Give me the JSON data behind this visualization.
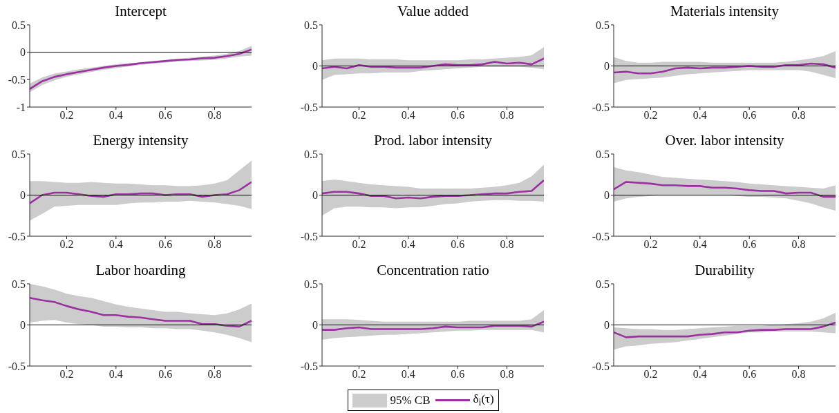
{
  "chart_data": [
    {
      "type": "line",
      "title": "Intercept",
      "x": [
        0.05,
        0.1,
        0.15,
        0.2,
        0.25,
        0.3,
        0.35,
        0.4,
        0.45,
        0.5,
        0.55,
        0.6,
        0.65,
        0.7,
        0.75,
        0.8,
        0.85,
        0.9,
        0.95
      ],
      "xlim": [
        0.05,
        0.95
      ],
      "xticks": [
        0.2,
        0.4,
        0.6,
        0.8
      ],
      "ylim": [
        -1,
        0.5
      ],
      "yticks": [
        -1,
        -0.5,
        0,
        0.5
      ],
      "ref_lines": [
        {
          "axis": "y",
          "value": 0,
          "color": "#000000"
        }
      ],
      "series": [
        {
          "color": "#9b30a0",
          "values": [
            -0.67,
            -0.53,
            -0.45,
            -0.4,
            -0.36,
            -0.32,
            -0.28,
            -0.25,
            -0.23,
            -0.2,
            -0.18,
            -0.16,
            -0.14,
            -0.13,
            -0.11,
            -0.1,
            -0.07,
            -0.03,
            0.05
          ],
          "lower": [
            -0.73,
            -0.6,
            -0.51,
            -0.45,
            -0.4,
            -0.36,
            -0.32,
            -0.29,
            -0.26,
            -0.23,
            -0.21,
            -0.19,
            -0.17,
            -0.16,
            -0.15,
            -0.14,
            -0.11,
            -0.08,
            -0.06
          ],
          "upper": [
            -0.57,
            -0.46,
            -0.39,
            -0.35,
            -0.31,
            -0.28,
            -0.25,
            -0.22,
            -0.2,
            -0.18,
            -0.16,
            -0.14,
            -0.12,
            -0.1,
            -0.08,
            -0.06,
            -0.03,
            0.02,
            0.12
          ]
        }
      ]
    },
    {
      "type": "line",
      "title": "Value added",
      "x": [
        0.05,
        0.1,
        0.15,
        0.2,
        0.25,
        0.3,
        0.35,
        0.4,
        0.45,
        0.5,
        0.55,
        0.6,
        0.65,
        0.7,
        0.75,
        0.8,
        0.85,
        0.9,
        0.95
      ],
      "xlim": [
        0.05,
        0.95
      ],
      "xticks": [
        0.2,
        0.4,
        0.6,
        0.8
      ],
      "ylim": [
        -0.5,
        0.5
      ],
      "yticks": [
        -0.5,
        0,
        0.5
      ],
      "ref_lines": [
        {
          "axis": "y",
          "value": 0,
          "color": "#000000"
        }
      ],
      "series": [
        {
          "color": "#9b30a0",
          "values": [
            -0.03,
            -0.01,
            -0.03,
            0.01,
            -0.01,
            -0.01,
            -0.02,
            -0.02,
            -0.02,
            0.0,
            0.02,
            0.01,
            0.01,
            0.02,
            0.05,
            0.03,
            0.04,
            0.02,
            0.09
          ],
          "lower": [
            -0.17,
            -0.11,
            -0.1,
            -0.09,
            -0.09,
            -0.08,
            -0.08,
            -0.08,
            -0.06,
            -0.05,
            -0.04,
            -0.03,
            -0.02,
            -0.01,
            -0.01,
            -0.01,
            -0.01,
            -0.02,
            -0.04
          ],
          "upper": [
            0.07,
            0.09,
            0.09,
            0.09,
            0.08,
            0.08,
            0.08,
            0.07,
            0.07,
            0.07,
            0.07,
            0.07,
            0.08,
            0.08,
            0.09,
            0.1,
            0.11,
            0.13,
            0.23
          ]
        }
      ]
    },
    {
      "type": "line",
      "title": "Materials intensity",
      "x": [
        0.05,
        0.1,
        0.15,
        0.2,
        0.25,
        0.3,
        0.35,
        0.4,
        0.45,
        0.5,
        0.55,
        0.6,
        0.65,
        0.7,
        0.75,
        0.8,
        0.85,
        0.9,
        0.95
      ],
      "xlim": [
        0.05,
        0.95
      ],
      "xticks": [
        0.2,
        0.4,
        0.6,
        0.8
      ],
      "ylim": [
        -0.5,
        0.5
      ],
      "yticks": [
        -0.5,
        0,
        0.5
      ],
      "ref_lines": [
        {
          "axis": "y",
          "value": 0,
          "color": "#000000"
        }
      ],
      "series": [
        {
          "color": "#9b30a0",
          "values": [
            -0.08,
            -0.07,
            -0.09,
            -0.09,
            -0.07,
            -0.03,
            -0.02,
            -0.03,
            -0.02,
            -0.02,
            -0.01,
            0.0,
            -0.01,
            -0.01,
            0.01,
            0.01,
            0.03,
            0.02,
            -0.02
          ],
          "lower": [
            -0.21,
            -0.17,
            -0.16,
            -0.15,
            -0.14,
            -0.12,
            -0.1,
            -0.09,
            -0.08,
            -0.07,
            -0.06,
            -0.05,
            -0.05,
            -0.05,
            -0.05,
            -0.05,
            -0.07,
            -0.11,
            -0.15
          ],
          "upper": [
            0.11,
            0.06,
            0.04,
            0.04,
            0.05,
            0.05,
            0.05,
            0.05,
            0.04,
            0.04,
            0.04,
            0.04,
            0.04,
            0.04,
            0.05,
            0.07,
            0.09,
            0.12,
            0.18
          ]
        }
      ]
    },
    {
      "type": "line",
      "title": "Energy intensity",
      "x": [
        0.05,
        0.1,
        0.15,
        0.2,
        0.25,
        0.3,
        0.35,
        0.4,
        0.45,
        0.5,
        0.55,
        0.6,
        0.65,
        0.7,
        0.75,
        0.8,
        0.85,
        0.9,
        0.95
      ],
      "xlim": [
        0.05,
        0.95
      ],
      "xticks": [
        0.2,
        0.4,
        0.6,
        0.8
      ],
      "ylim": [
        -0.5,
        0.5
      ],
      "yticks": [
        -0.5,
        0,
        0.5
      ],
      "ref_lines": [
        {
          "axis": "y",
          "value": 0,
          "color": "#000000"
        }
      ],
      "series": [
        {
          "color": "#9b30a0",
          "values": [
            -0.1,
            0.0,
            0.03,
            0.03,
            0.01,
            -0.01,
            -0.02,
            0.01,
            0.01,
            0.02,
            0.02,
            0.0,
            0.01,
            0.01,
            -0.02,
            0.0,
            0.01,
            0.06,
            0.16
          ],
          "lower": [
            -0.31,
            -0.23,
            -0.14,
            -0.13,
            -0.12,
            -0.12,
            -0.12,
            -0.12,
            -0.1,
            -0.09,
            -0.09,
            -0.08,
            -0.08,
            -0.07,
            -0.08,
            -0.09,
            -0.11,
            -0.13,
            -0.17
          ],
          "upper": [
            0.17,
            0.17,
            0.16,
            0.15,
            0.15,
            0.16,
            0.15,
            0.14,
            0.14,
            0.13,
            0.12,
            0.12,
            0.11,
            0.11,
            0.12,
            0.14,
            0.18,
            0.3,
            0.42
          ]
        }
      ]
    },
    {
      "type": "line",
      "title": "Prod. labor intensity",
      "x": [
        0.05,
        0.1,
        0.15,
        0.2,
        0.25,
        0.3,
        0.35,
        0.4,
        0.45,
        0.5,
        0.55,
        0.6,
        0.65,
        0.7,
        0.75,
        0.8,
        0.85,
        0.9,
        0.95
      ],
      "xlim": [
        0.05,
        0.95
      ],
      "xticks": [
        0.2,
        0.4,
        0.6,
        0.8
      ],
      "ylim": [
        -0.5,
        0.5
      ],
      "yticks": [
        -0.5,
        0,
        0.5
      ],
      "ref_lines": [
        {
          "axis": "y",
          "value": 0,
          "color": "#000000"
        }
      ],
      "series": [
        {
          "color": "#9b30a0",
          "values": [
            0.02,
            0.04,
            0.04,
            0.02,
            -0.01,
            -0.01,
            -0.04,
            -0.03,
            -0.04,
            -0.02,
            -0.01,
            -0.01,
            0.0,
            0.01,
            0.02,
            0.02,
            0.04,
            0.05,
            0.18
          ],
          "lower": [
            -0.25,
            -0.16,
            -0.14,
            -0.14,
            -0.15,
            -0.15,
            -0.16,
            -0.15,
            -0.15,
            -0.13,
            -0.11,
            -0.1,
            -0.08,
            -0.07,
            -0.06,
            -0.06,
            -0.07,
            -0.07,
            -0.08
          ],
          "upper": [
            0.17,
            0.19,
            0.17,
            0.15,
            0.13,
            0.12,
            0.11,
            0.1,
            0.08,
            0.08,
            0.08,
            0.08,
            0.08,
            0.09,
            0.1,
            0.12,
            0.15,
            0.23,
            0.37
          ]
        }
      ]
    },
    {
      "type": "line",
      "title": "Over. labor intensity",
      "x": [
        0.05,
        0.1,
        0.15,
        0.2,
        0.25,
        0.3,
        0.35,
        0.4,
        0.45,
        0.5,
        0.55,
        0.6,
        0.65,
        0.7,
        0.75,
        0.8,
        0.85,
        0.9,
        0.95
      ],
      "xlim": [
        0.05,
        0.95
      ],
      "xticks": [
        0.2,
        0.4,
        0.6,
        0.8
      ],
      "ylim": [
        -0.5,
        0.5
      ],
      "yticks": [
        -0.5,
        0,
        0.5
      ],
      "ref_lines": [
        {
          "axis": "y",
          "value": 0,
          "color": "#000000"
        }
      ],
      "series": [
        {
          "color": "#9b30a0",
          "values": [
            0.07,
            0.16,
            0.15,
            0.14,
            0.12,
            0.12,
            0.11,
            0.11,
            0.09,
            0.09,
            0.08,
            0.06,
            0.05,
            0.05,
            0.02,
            0.03,
            0.03,
            -0.02,
            -0.02
          ],
          "lower": [
            -0.08,
            -0.04,
            -0.02,
            -0.01,
            0.0,
            0.0,
            0.0,
            0.0,
            0.0,
            0.0,
            -0.01,
            -0.02,
            -0.02,
            -0.03,
            -0.04,
            -0.07,
            -0.1,
            -0.15,
            -0.19
          ],
          "upper": [
            0.34,
            0.3,
            0.28,
            0.25,
            0.22,
            0.21,
            0.2,
            0.19,
            0.18,
            0.17,
            0.16,
            0.14,
            0.13,
            0.12,
            0.11,
            0.1,
            0.09,
            0.08,
            0.12
          ]
        }
      ]
    },
    {
      "type": "line",
      "title": "Labor hoarding",
      "x": [
        0.05,
        0.1,
        0.15,
        0.2,
        0.25,
        0.3,
        0.35,
        0.4,
        0.45,
        0.5,
        0.55,
        0.6,
        0.65,
        0.7,
        0.75,
        0.8,
        0.85,
        0.9,
        0.95
      ],
      "xlim": [
        0.05,
        0.95
      ],
      "xticks": [
        0.2,
        0.4,
        0.6,
        0.8
      ],
      "ylim": [
        -0.5,
        0.5
      ],
      "yticks": [
        -0.5,
        0,
        0.5
      ],
      "ref_lines": [
        {
          "axis": "y",
          "value": 0,
          "color": "#000000"
        }
      ],
      "series": [
        {
          "color": "#9b30a0",
          "values": [
            0.33,
            0.3,
            0.28,
            0.23,
            0.19,
            0.16,
            0.12,
            0.12,
            0.1,
            0.09,
            0.07,
            0.05,
            0.05,
            0.05,
            0.01,
            0.01,
            -0.01,
            -0.02,
            0.05
          ],
          "lower": [
            0.03,
            0.05,
            0.06,
            0.03,
            0.01,
            0.0,
            -0.02,
            -0.02,
            -0.03,
            -0.03,
            -0.04,
            -0.04,
            -0.05,
            -0.05,
            -0.07,
            -0.09,
            -0.12,
            -0.16,
            -0.21
          ],
          "upper": [
            0.5,
            0.47,
            0.43,
            0.38,
            0.35,
            0.33,
            0.29,
            0.25,
            0.22,
            0.2,
            0.18,
            0.16,
            0.16,
            0.14,
            0.13,
            0.12,
            0.14,
            0.19,
            0.26
          ]
        }
      ]
    },
    {
      "type": "line",
      "title": "Concentration ratio",
      "x": [
        0.05,
        0.1,
        0.15,
        0.2,
        0.25,
        0.3,
        0.35,
        0.4,
        0.45,
        0.5,
        0.55,
        0.6,
        0.65,
        0.7,
        0.75,
        0.8,
        0.85,
        0.9,
        0.95
      ],
      "xlim": [
        0.05,
        0.95
      ],
      "xticks": [
        0.2,
        0.4,
        0.6,
        0.8
      ],
      "ylim": [
        -0.5,
        0.5
      ],
      "yticks": [
        -0.5,
        0,
        0.5
      ],
      "ref_lines": [
        {
          "axis": "y",
          "value": 0,
          "color": "#000000"
        }
      ],
      "legend": "bottom",
      "annotations": [
        "95% CB"
      ],
      "series": [
        {
          "name": "δ$_{i}$(τ)",
          "color": "#9b30a0",
          "values": [
            -0.06,
            -0.06,
            -0.04,
            -0.03,
            -0.05,
            -0.05,
            -0.05,
            -0.05,
            -0.05,
            -0.04,
            -0.02,
            -0.03,
            -0.03,
            -0.03,
            -0.01,
            -0.01,
            -0.01,
            -0.02,
            0.04
          ],
          "lower": [
            -0.18,
            -0.16,
            -0.15,
            -0.14,
            -0.13,
            -0.12,
            -0.12,
            -0.11,
            -0.1,
            -0.09,
            -0.08,
            -0.07,
            -0.07,
            -0.06,
            -0.06,
            -0.06,
            -0.06,
            -0.06,
            -0.09
          ],
          "upper": [
            0.07,
            0.07,
            0.07,
            0.06,
            0.05,
            0.04,
            0.04,
            0.04,
            0.04,
            0.04,
            0.04,
            0.04,
            0.05,
            0.05,
            0.05,
            0.05,
            0.05,
            0.07,
            0.18
          ]
        }
      ]
    },
    {
      "type": "line",
      "title": "Durability",
      "x": [
        0.05,
        0.1,
        0.15,
        0.2,
        0.25,
        0.3,
        0.35,
        0.4,
        0.45,
        0.5,
        0.55,
        0.6,
        0.65,
        0.7,
        0.75,
        0.8,
        0.85,
        0.9,
        0.95
      ],
      "xlim": [
        0.05,
        0.95
      ],
      "xticks": [
        0.2,
        0.4,
        0.6,
        0.8
      ],
      "ylim": [
        -0.5,
        0.5
      ],
      "yticks": [
        -0.5,
        0,
        0.5
      ],
      "ref_lines": [
        {
          "axis": "y",
          "value": 0,
          "color": "#000000"
        }
      ],
      "series": [
        {
          "color": "#9b30a0",
          "values": [
            -0.09,
            -0.15,
            -0.14,
            -0.14,
            -0.14,
            -0.14,
            -0.14,
            -0.12,
            -0.11,
            -0.09,
            -0.09,
            -0.07,
            -0.06,
            -0.06,
            -0.05,
            -0.05,
            -0.05,
            -0.02,
            0.03
          ],
          "lower": [
            -0.3,
            -0.26,
            -0.25,
            -0.23,
            -0.22,
            -0.21,
            -0.19,
            -0.17,
            -0.15,
            -0.13,
            -0.11,
            -0.09,
            -0.09,
            -0.08,
            -0.08,
            -0.08,
            -0.08,
            -0.09,
            -0.1
          ],
          "upper": [
            -0.03,
            -0.04,
            -0.05,
            -0.05,
            -0.06,
            -0.06,
            -0.05,
            -0.04,
            -0.03,
            -0.02,
            -0.01,
            -0.01,
            -0.01,
            0.0,
            0.01,
            0.02,
            0.04,
            0.08,
            0.15
          ]
        }
      ]
    }
  ]
}
